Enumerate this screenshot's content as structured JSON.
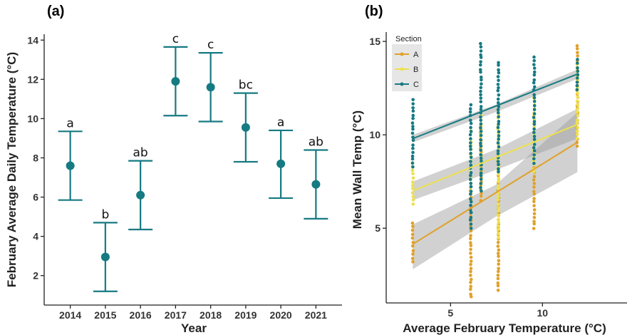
{
  "colors": {
    "teal": "#167a82",
    "section_A": "#e0a12a",
    "section_B": "#ede14d",
    "section_C": "#167a82",
    "ribbon": "#9a9a9a",
    "axis": "#222222"
  },
  "chart_data": [
    {
      "panel": "(a)",
      "type": "scatter",
      "error_bars": true,
      "xlabel": "Year",
      "ylabel": "February Average Daily Temperature (°C)",
      "categories": [
        "2014",
        "2015",
        "2016",
        "2017",
        "2018",
        "2019",
        "2020",
        "2021"
      ],
      "mean": [
        7.6,
        2.95,
        6.1,
        11.9,
        11.6,
        9.55,
        7.7,
        6.65
      ],
      "upper": [
        9.35,
        4.7,
        7.85,
        13.65,
        13.35,
        11.3,
        9.4,
        8.4
      ],
      "lower": [
        5.85,
        1.2,
        4.35,
        10.15,
        9.85,
        7.8,
        5.95,
        4.9
      ],
      "letters": [
        "a",
        "b",
        "ab",
        "c",
        "c",
        "bc",
        "a",
        "ab"
      ],
      "yticks": [
        "2",
        "4",
        "6",
        "8",
        "10",
        "12",
        "14"
      ],
      "ylim": [
        0.5,
        14.3
      ],
      "grid": false
    },
    {
      "panel": "(b)",
      "type": "scatter",
      "xlabel": "Average February Temperature (°C)",
      "ylabel": "Mean Wall Temp (°C)",
      "xticks": [
        "5",
        "10"
      ],
      "yticks": [
        "5",
        "10",
        "15"
      ],
      "xlim": [
        1.5,
        14.6
      ],
      "ylim": [
        1,
        15.5
      ],
      "grid": false,
      "legend": {
        "title": "Section",
        "position": "top-left"
      },
      "x_levels": [
        2.95,
        6.1,
        6.65,
        7.6,
        9.55,
        11.9
      ],
      "series": [
        {
          "name": "A",
          "color_key": "section_A",
          "fit": {
            "x": [
              2.95,
              11.9
            ],
            "y": [
              4.15,
              9.6
            ]
          },
          "ci_lower": [
            2.8,
            5.6,
            8.0
          ],
          "ci_upper": [
            5.2,
            7.3,
            11.2
          ],
          "points": [
            [
              2.95,
              3.2,
              5.3
            ],
            [
              6.1,
              1.3,
              7.2
            ],
            [
              6.65,
              6.5,
              10.5
            ],
            [
              7.6,
              1.7,
              9.0
            ],
            [
              9.55,
              5.0,
              8.2
            ],
            [
              11.9,
              9.4,
              14.8
            ]
          ]
        },
        {
          "name": "B",
          "color_key": "section_B",
          "fit": {
            "x": [
              2.95,
              11.9
            ],
            "y": [
              7.0,
              10.55
            ]
          },
          "ci_lower": [
            6.5,
            8.1,
            9.8
          ],
          "ci_upper": [
            7.5,
            9.2,
            11.4
          ],
          "points": [
            [
              2.95,
              6.3,
              8.5
            ],
            [
              6.1,
              7.0,
              10.2
            ],
            [
              6.65,
              8.0,
              11.0
            ],
            [
              7.6,
              4.5,
              11.5
            ],
            [
              9.55,
              8.0,
              12.0
            ],
            [
              11.9,
              9.8,
              13.8
            ]
          ]
        },
        {
          "name": "C",
          "color_key": "section_C",
          "fit": {
            "x": [
              2.95,
              11.9
            ],
            "y": [
              9.8,
              13.25
            ]
          },
          "ci_lower": [
            9.6,
            11.2,
            13.0
          ],
          "ci_upper": [
            10.0,
            11.6,
            13.5
          ],
          "points": [
            [
              2.95,
              8.3,
              11.85
            ],
            [
              6.1,
              5.0,
              11.6
            ],
            [
              6.65,
              7.0,
              14.9
            ],
            [
              7.6,
              8.0,
              13.9
            ],
            [
              9.55,
              8.5,
              14.2
            ],
            [
              11.9,
              12.4,
              14.0
            ]
          ]
        }
      ]
    }
  ]
}
